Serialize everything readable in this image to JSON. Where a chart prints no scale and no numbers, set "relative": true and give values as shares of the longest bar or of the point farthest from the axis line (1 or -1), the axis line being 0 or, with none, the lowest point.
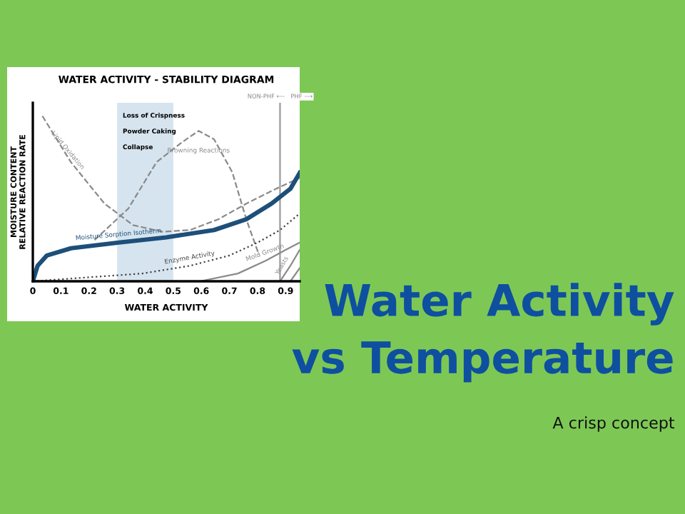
{
  "chart_data": {
    "type": "line",
    "relative": true,
    "title": "WATER ACTIVITY - STABILITY DIAGRAM",
    "xlabel": "WATER ACTIVITY",
    "ylabel": "MOISTURE CONTENT\nRELATIVE REACTION RATE",
    "xlim": [
      0,
      0.95
    ],
    "xticks": [
      0,
      0.1,
      0.2,
      0.3,
      0.4,
      0.5,
      0.6,
      0.7,
      0.8,
      0.9
    ],
    "grid": false,
    "legend": false,
    "series": [
      {
        "name": "Lipid Oxidation",
        "color": "#8a8a8a",
        "line_style": "dashed",
        "x": [
          0.034,
          0.136,
          0.255,
          0.357,
          0.46,
          0.56,
          0.66,
          0.76,
          0.866,
          0.95
        ],
        "values": [
          1.0,
          0.72,
          0.47,
          0.34,
          0.3,
          0.31,
          0.375,
          0.47,
          0.56,
          0.625
        ]
      },
      {
        "name": "Browning Reactions",
        "color": "#8a8a8a",
        "line_style": "dashed",
        "x": [
          0.22,
          0.34,
          0.44,
          0.53,
          0.59,
          0.645,
          0.71,
          0.76,
          0.805
        ],
        "values": [
          0.25,
          0.44,
          0.72,
          0.84,
          0.91,
          0.86,
          0.66,
          0.375,
          0.16
        ]
      },
      {
        "name": "Moisture Sorption Isotherm",
        "color": "#1d4f7a",
        "line_style": "solid",
        "x": [
          0,
          0.017,
          0.05,
          0.136,
          0.306,
          0.475,
          0.645,
          0.76,
          0.85,
          0.917,
          0.95
        ],
        "values": [
          0,
          0.094,
          0.156,
          0.2,
          0.234,
          0.266,
          0.31,
          0.375,
          0.47,
          0.56,
          0.656
        ]
      },
      {
        "name": "Enzyme Activity",
        "color": "#444444",
        "line_style": "dotted",
        "x": [
          0,
          0.39,
          0.56,
          0.7,
          0.8,
          0.88,
          0.95
        ],
        "values": [
          0,
          0.047,
          0.094,
          0.156,
          0.234,
          0.31,
          0.41
        ]
      },
      {
        "name": "Mold Growth",
        "color": "#8a8a8a",
        "line_style": "solid",
        "x": [
          0.595,
          0.73,
          0.83,
          0.9,
          0.95
        ],
        "values": [
          0,
          0.047,
          0.125,
          0.19,
          0.234
        ]
      },
      {
        "name": "Yeasts",
        "color": "#8a8a8a",
        "line_style": "solid",
        "x": [
          0.88,
          0.917,
          0.95
        ],
        "values": [
          0,
          0.094,
          0.19
        ]
      },
      {
        "color": "#8a8a8a",
        "line_style": "solid",
        "x": [
          0.917,
          0.95
        ],
        "values": [
          0,
          0.08
        ]
      }
    ],
    "bands": [
      {
        "axis": "x",
        "from": 0.3,
        "to": 0.5,
        "label": "Loss of Crispness\nPowder Caking\nCollapse",
        "color": "#d6e4ef"
      }
    ],
    "ref_lines": [
      {
        "axis": "x",
        "value": 0.88,
        "label": "NON-PHF ⟵   PHF ⟶",
        "color": "#9a9a9a"
      }
    ],
    "annotations": [
      "Water Activity",
      "vs Temperature",
      "A crisp concept"
    ]
  }
}
